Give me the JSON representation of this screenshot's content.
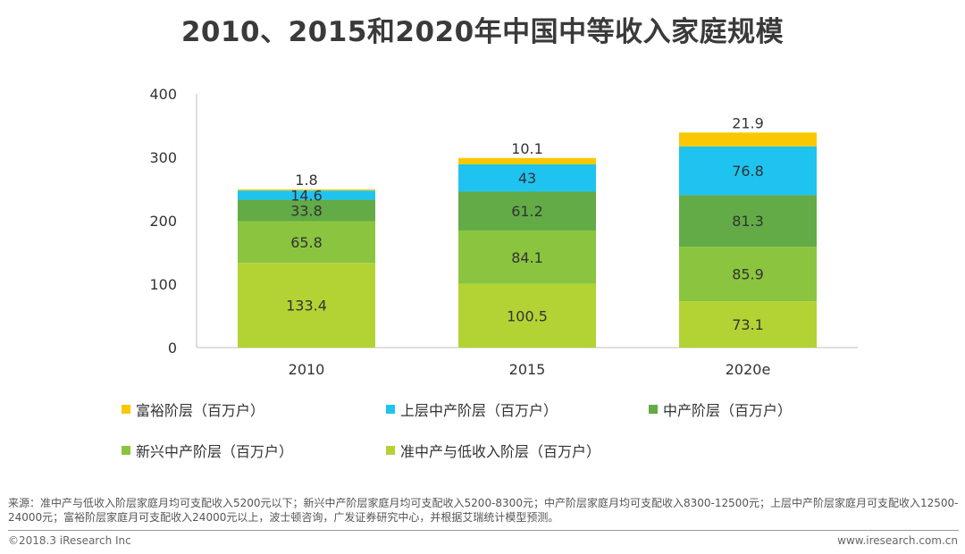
{
  "title": "2010、2015和2020年中国中等收入家庭规模",
  "chart_data": {
    "type": "bar",
    "stacked": true,
    "categories": [
      "2010",
      "2015",
      "2020e"
    ],
    "ylim": [
      0,
      400
    ],
    "yticks": [
      "0",
      "100",
      "200",
      "300",
      "400"
    ],
    "grid": false,
    "legend_position": "bottom",
    "series": [
      {
        "name": "准中产与低收入阶层（百万户）",
        "color": "#b3d334",
        "values": [
          133.4,
          100.5,
          73.1
        ],
        "labels": [
          "133.4",
          "100.5",
          "73.1"
        ]
      },
      {
        "name": "新兴中产阶层（百万户）",
        "color": "#8bc53f",
        "values": [
          65.8,
          84.1,
          85.9
        ],
        "labels": [
          "65.8",
          "84.1",
          "85.9"
        ]
      },
      {
        "name": "中产阶层（百万户）",
        "color": "#62ab46",
        "values": [
          33.8,
          61.2,
          81.3
        ],
        "labels": [
          "33.8",
          "61.2",
          "81.3"
        ]
      },
      {
        "name": "上层中产阶层（百万户）",
        "color": "#1fc3f0",
        "values": [
          14.6,
          43,
          76.8
        ],
        "labels": [
          "14.6",
          "43",
          "76.8"
        ]
      },
      {
        "name": "富裕阶层（百万户）",
        "color": "#f9c800",
        "values": [
          1.8,
          10.1,
          21.9
        ],
        "labels": [
          "1.8",
          "10.1",
          "21.9"
        ]
      }
    ]
  },
  "legend": [
    {
      "label": "富裕阶层（百万户）",
      "color": "#f9c800"
    },
    {
      "label": "上层中产阶层（百万户）",
      "color": "#1fc3f0"
    },
    {
      "label": "中产阶层（百万户）",
      "color": "#62ab46"
    },
    {
      "label": "新兴中产阶层（百万户）",
      "color": "#8bc53f"
    },
    {
      "label": "准中产与低收入阶层（百万户）",
      "color": "#b3d334"
    }
  ],
  "source": "来源：准中产与低收入阶层家庭月均可支配收入5200元以下；新兴中产阶层家庭月均可支配收入5200-8300元；中产阶层家庭月均可支配收入8300-12500元；上层中产阶层家庭月可支配收入12500-24000元；富裕阶层家庭月可支配收入24000元以上，波士顿咨询，广发证券研究中心，并根据艾瑞统计模型预测。",
  "copyright": "©2018.3 iResearch Inc",
  "website": "www.iresearch.com.cn"
}
